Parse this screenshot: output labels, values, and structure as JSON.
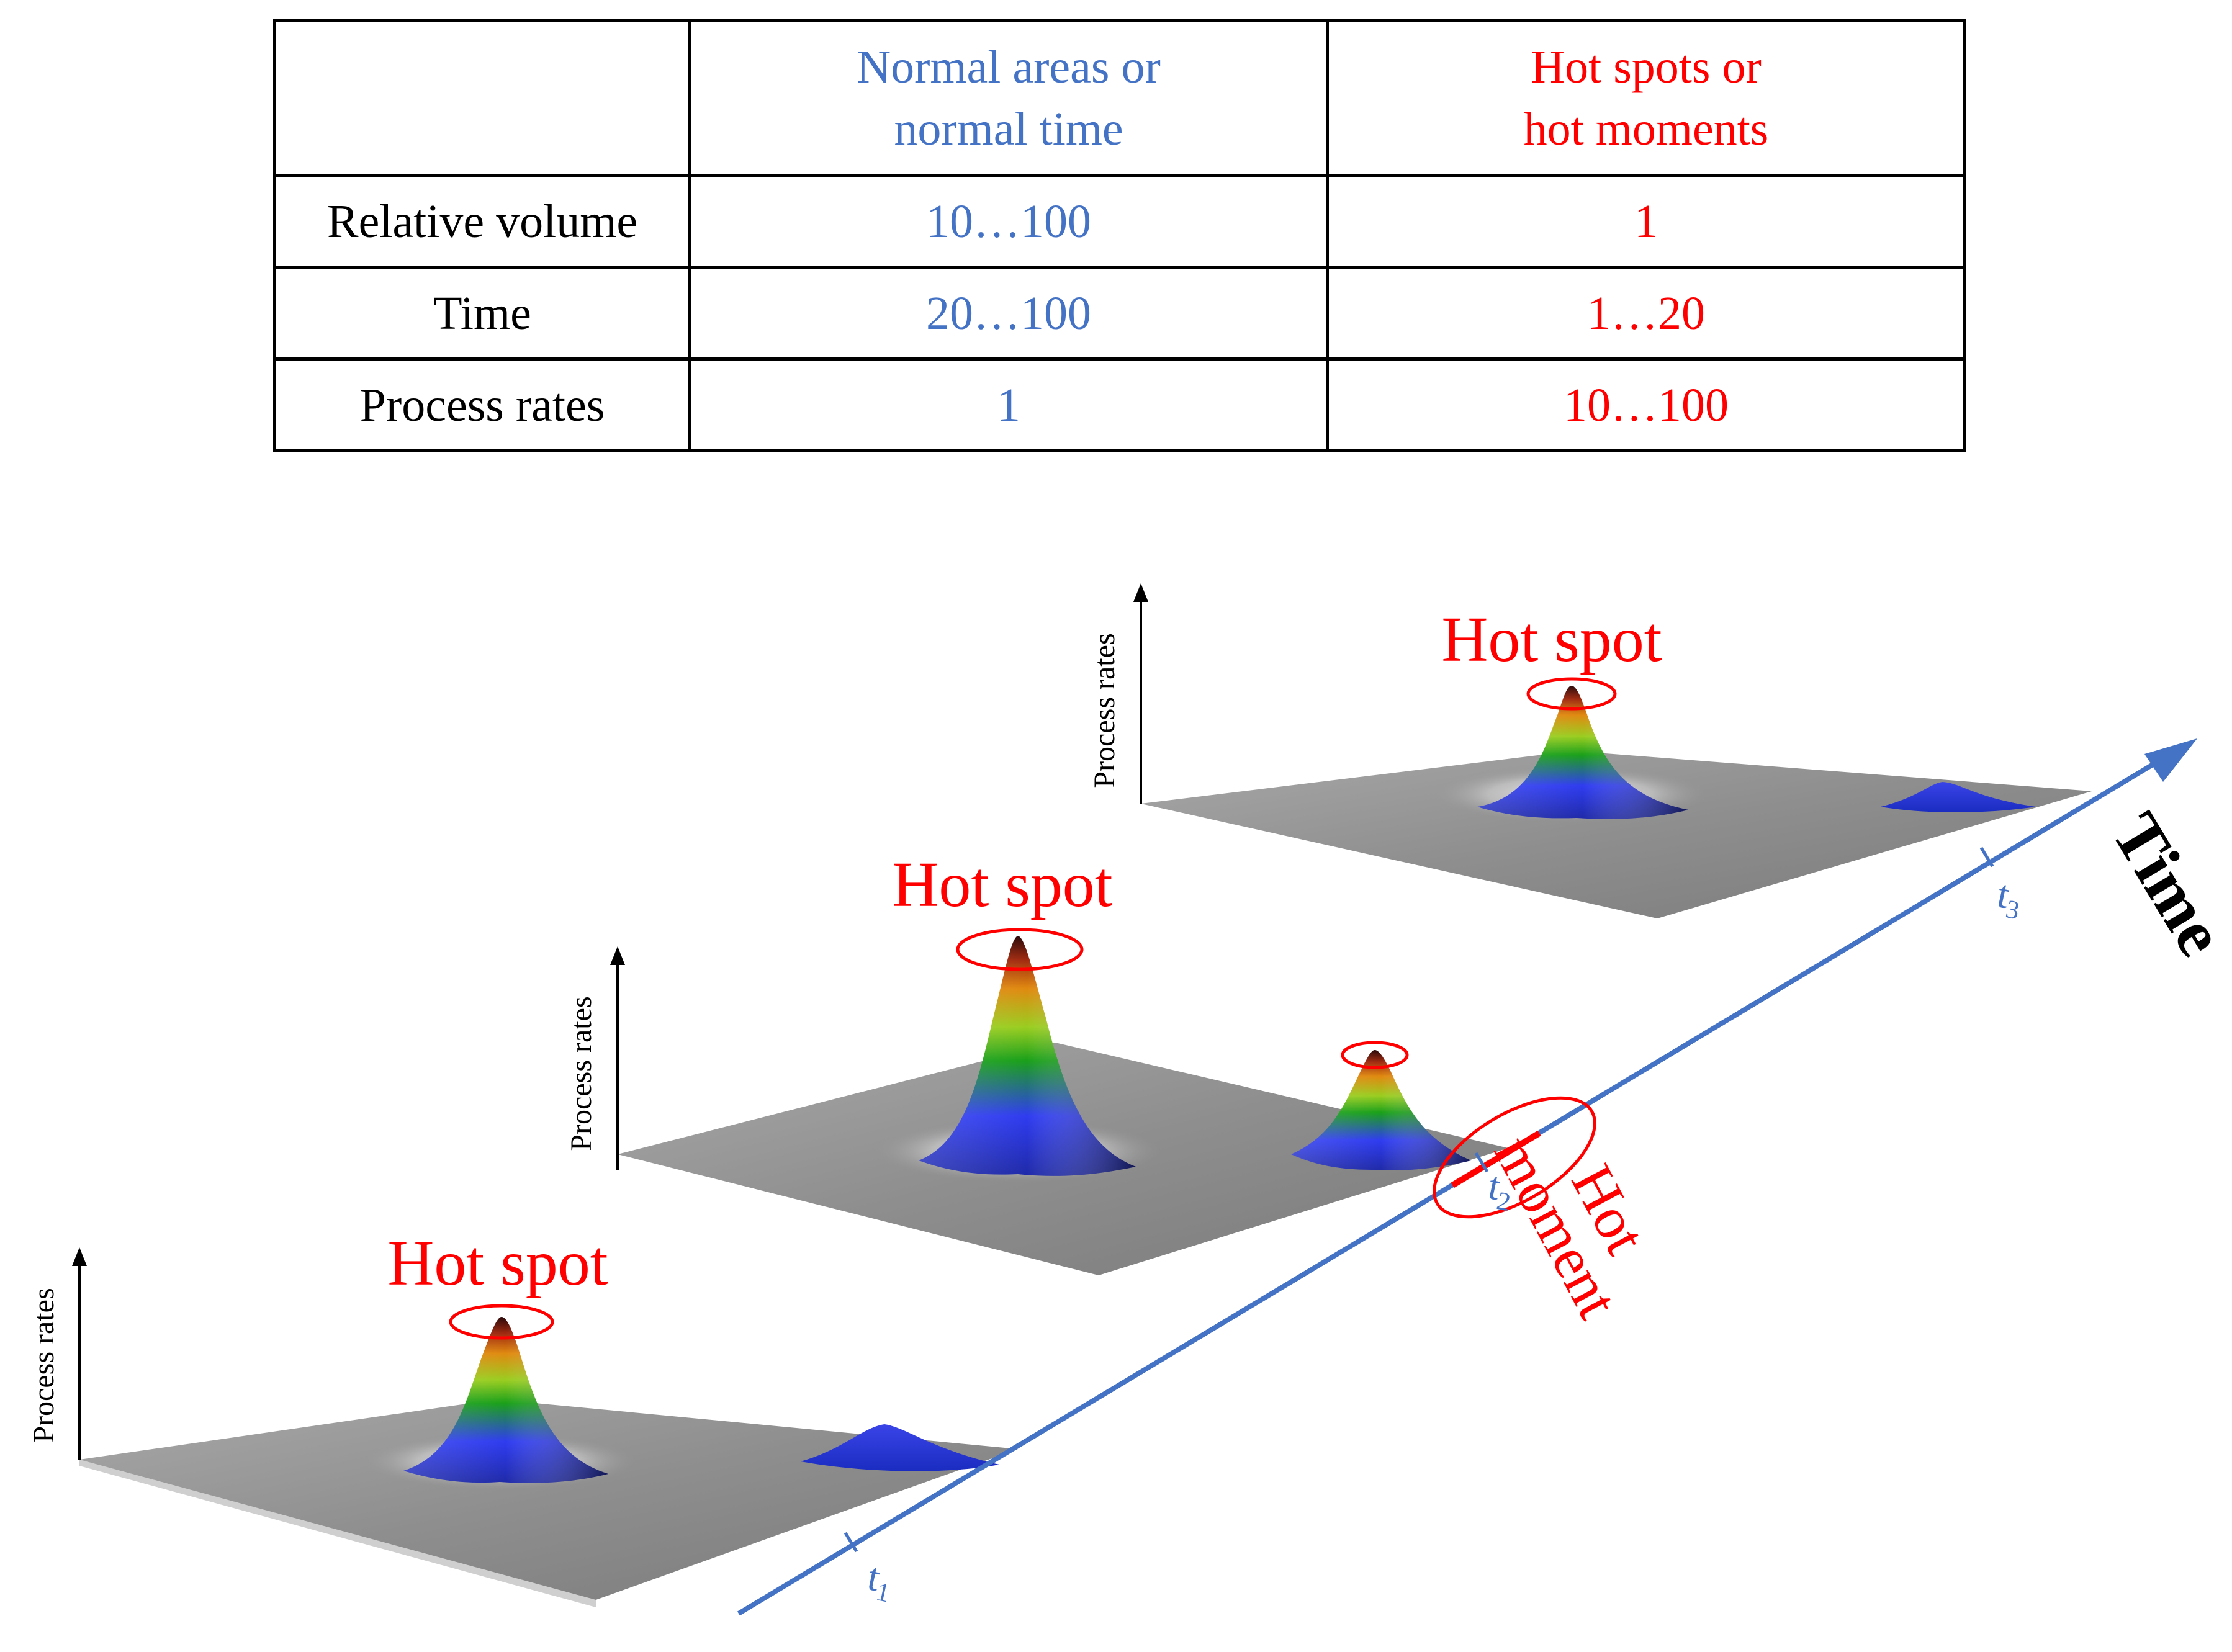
{
  "table": {
    "header": [
      "",
      "Normal areas or normal time",
      "Hot spots or hot moments"
    ],
    "header_lines": [
      [],
      [
        "Normal areas or",
        "normal time"
      ],
      [
        "Hot spots or",
        "hot moments"
      ]
    ],
    "rows": [
      {
        "label": "Relative volume",
        "normal": "10…100",
        "hot": "1"
      },
      {
        "label": "Time",
        "normal": "20…100",
        "hot": "1…20"
      },
      {
        "label": "Process rates",
        "normal": "1",
        "hot": "10…100"
      }
    ]
  },
  "diagram": {
    "y_axis_label": "Process rates",
    "hot_spot_label": "Hot spot",
    "hot_moment_label_lines": [
      "Hot",
      "moment"
    ],
    "time_axis_label": "Time",
    "ticks": [
      {
        "base": "t",
        "sub": "1"
      },
      {
        "base": "t",
        "sub": "2"
      },
      {
        "base": "t",
        "sub": "3"
      }
    ],
    "colors": {
      "normal": "#4472c4",
      "hot": "#ff0000",
      "plane": "#9a9a9a",
      "axis": "#4472c4"
    }
  }
}
